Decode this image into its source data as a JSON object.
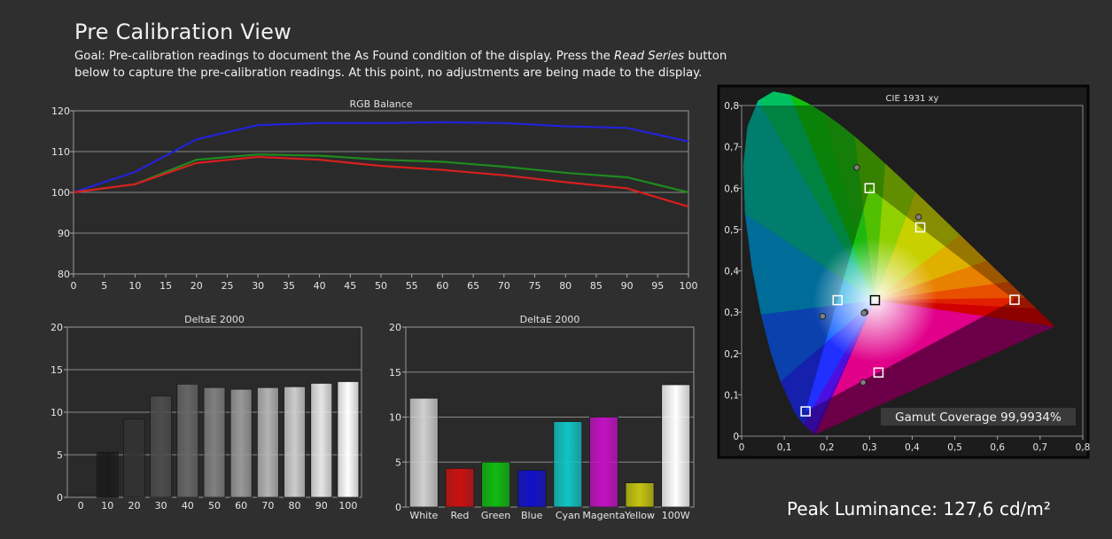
{
  "page": {
    "title": "Pre Calibration View",
    "goal_prefix": "Goal: Pre-calibration readings to document the As Found condition of the display. Press the ",
    "goal_emph": "Read Series",
    "goal_suffix": " button below to capture the pre-calibration readings. At this point, no adjustments are being made to the display.",
    "peak_luminance": "Peak Luminance: 127,6 cd/m²"
  },
  "chart_data": [
    {
      "id": "rgb",
      "type": "line",
      "title": "RGB Balance",
      "x": [
        0,
        10,
        20,
        30,
        40,
        50,
        60,
        70,
        80,
        90,
        100
      ],
      "xticks": [
        0,
        5,
        10,
        15,
        20,
        25,
        30,
        35,
        40,
        45,
        50,
        55,
        60,
        65,
        70,
        75,
        80,
        85,
        90,
        95,
        100
      ],
      "ylim": [
        80,
        120
      ],
      "yticks": [
        80,
        90,
        100,
        110,
        120
      ],
      "series": [
        {
          "color": "#2222d8",
          "values": [
            100,
            105,
            113,
            116.5,
            117,
            117,
            117.2,
            117,
            116.2,
            115.8,
            112.5
          ]
        },
        {
          "color": "#1f8a1f",
          "values": [
            100,
            102,
            108,
            109.3,
            109,
            108,
            107.5,
            106.3,
            104.8,
            103.7,
            100
          ]
        },
        {
          "color": "#d81e1e",
          "values": [
            100,
            102,
            107.2,
            108.7,
            108,
            106.5,
            105.5,
            104.2,
            102.5,
            101,
            96.5
          ]
        }
      ]
    },
    {
      "id": "grey",
      "type": "bar",
      "title": "DeltaE 2000",
      "categories": [
        "0",
        "10",
        "20",
        "30",
        "40",
        "50",
        "60",
        "70",
        "80",
        "90",
        "100"
      ],
      "values": [
        0,
        5.3,
        9.2,
        11.9,
        13.3,
        12.9,
        12.7,
        12.9,
        13,
        13.4,
        13.6
      ],
      "colors": [
        "#000000",
        "#1a1a1a",
        "#333333",
        "#4d4d4d",
        "#666666",
        "#808080",
        "#999999",
        "#b3b3b3",
        "#cccccc",
        "#e6e6e6",
        "#ffffff"
      ],
      "ylim": [
        0,
        20
      ],
      "yticks": [
        0,
        5,
        10,
        15,
        20
      ]
    },
    {
      "id": "color",
      "type": "bar",
      "title": "DeltaE 2000",
      "categories": [
        "White",
        "Red",
        "Green",
        "Blue",
        "Cyan",
        "Magenta",
        "Yellow",
        "100W"
      ],
      "values": [
        12.1,
        4.3,
        5.0,
        4.1,
        9.5,
        10.0,
        2.7,
        13.6
      ],
      "colors": [
        "#d0d0d0",
        "#cc1111",
        "#11bb11",
        "#1111cc",
        "#11c4c4",
        "#c411c4",
        "#c4c411",
        "#ffffff"
      ],
      "ylim": [
        0,
        20
      ],
      "yticks": [
        0,
        5,
        10,
        15,
        20
      ]
    },
    {
      "id": "cie",
      "type": "scatter",
      "title": "CIE 1931 xy",
      "xlim": [
        0,
        0.8
      ],
      "ylim": [
        0,
        0.8
      ],
      "xticks": [
        "0",
        "0,1",
        "0,2",
        "0,3",
        "0,4",
        "0,5",
        "0,6",
        "0,7",
        "0,8"
      ],
      "yticks": [
        "0",
        "0,1",
        "0,2",
        "0,3",
        "0,4",
        "0,5",
        "0,6",
        "0,7",
        "0,8"
      ],
      "targets": [
        [
          0.64,
          0.33
        ],
        [
          0.3,
          0.6
        ],
        [
          0.15,
          0.06
        ],
        [
          0.3127,
          0.329
        ],
        [
          0.225,
          0.329
        ],
        [
          0.321,
          0.154
        ],
        [
          0.419,
          0.505
        ]
      ],
      "measured": [
        [
          0.27,
          0.65
        ],
        [
          0.19,
          0.29
        ],
        [
          0.285,
          0.13
        ],
        [
          0.29,
          0.3
        ],
        [
          0.415,
          0.53
        ],
        [
          0.287,
          0.298
        ]
      ],
      "gamut_label": "Gamut Coverage 99,9934%"
    }
  ]
}
